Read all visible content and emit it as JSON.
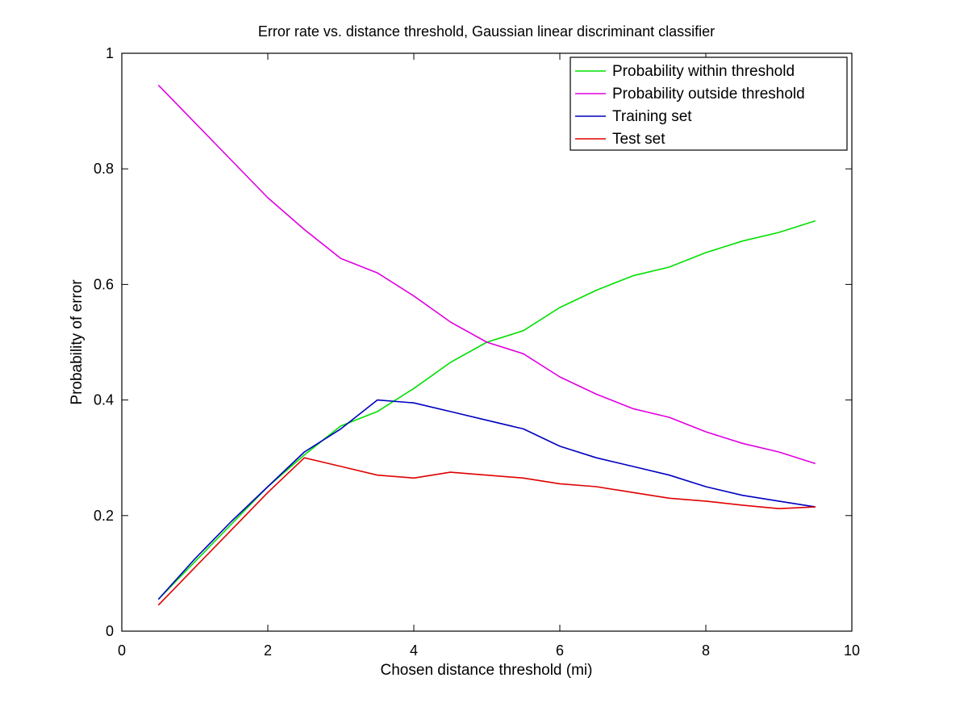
{
  "chart_data": {
    "type": "line",
    "title": "Error rate vs. distance threshold, Gaussian linear discriminant classifier",
    "xlabel": "Chosen distance threshold (mi)",
    "ylabel": "Probability of error",
    "xlim": [
      0,
      10
    ],
    "ylim": [
      0,
      1
    ],
    "xticks": [
      0,
      2,
      4,
      6,
      8,
      10
    ],
    "yticks": [
      0,
      0.2,
      0.4,
      0.6,
      0.8,
      1
    ],
    "xtick_labels": [
      "0",
      "2",
      "4",
      "6",
      "8",
      "10"
    ],
    "ytick_labels": [
      "0",
      "0.2",
      "0.4",
      "0.6",
      "0.8",
      "1"
    ],
    "grid": false,
    "legend_position": "top-right",
    "x": [
      0.5,
      1.0,
      1.5,
      2.0,
      2.5,
      3.0,
      3.5,
      4.0,
      4.5,
      5.0,
      5.5,
      6.0,
      6.5,
      7.0,
      7.5,
      8.0,
      8.5,
      9.0,
      9.5
    ],
    "series": [
      {
        "name": "Probability within threshold",
        "color": "#00e000",
        "values": [
          0.055,
          0.12,
          0.185,
          0.25,
          0.305,
          0.355,
          0.38,
          0.42,
          0.465,
          0.5,
          0.52,
          0.56,
          0.59,
          0.615,
          0.63,
          0.655,
          0.675,
          0.69,
          0.71
        ]
      },
      {
        "name": "Probability outside threshold",
        "color": "#e000e0",
        "values": [
          0.945,
          0.88,
          0.815,
          0.75,
          0.695,
          0.645,
          0.62,
          0.58,
          0.535,
          0.5,
          0.48,
          0.44,
          0.41,
          0.385,
          0.37,
          0.345,
          0.325,
          0.31,
          0.29
        ]
      },
      {
        "name": "Training set",
        "color": "#0000c0",
        "values": [
          0.055,
          0.125,
          0.19,
          0.25,
          0.31,
          0.35,
          0.4,
          0.395,
          0.38,
          0.365,
          0.35,
          0.32,
          0.3,
          0.285,
          0.27,
          0.25,
          0.235,
          0.225,
          0.215
        ]
      },
      {
        "name": "Test set",
        "color": "#e00000",
        "values": [
          0.045,
          0.11,
          0.175,
          0.24,
          0.3,
          0.285,
          0.27,
          0.265,
          0.275,
          0.27,
          0.265,
          0.255,
          0.25,
          0.24,
          0.23,
          0.225,
          0.218,
          0.212,
          0.215
        ]
      }
    ]
  }
}
